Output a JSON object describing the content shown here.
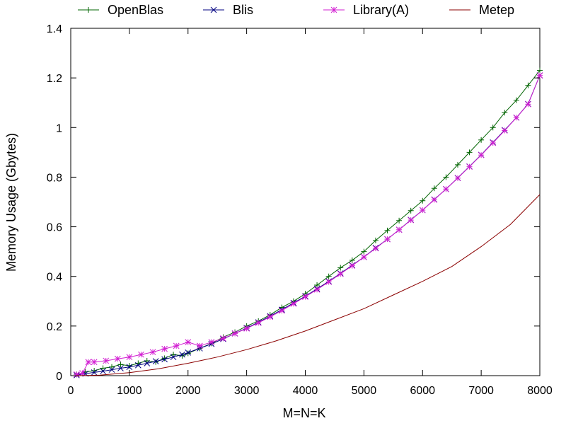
{
  "chart_data": {
    "type": "line",
    "title": "",
    "xlabel": "M=N=K",
    "ylabel": "Memory Usage (Gbytes)",
    "xlim": [
      0,
      8000
    ],
    "ylim": [
      0,
      1.4
    ],
    "xticks": [
      0,
      1000,
      2000,
      3000,
      4000,
      5000,
      6000,
      7000,
      8000
    ],
    "yticks": [
      0,
      0.2,
      0.4,
      0.6,
      0.8,
      1,
      1.2,
      1.4
    ],
    "xtick_labels": [
      "0",
      "1000",
      "2000",
      "3000",
      "4000",
      "5000",
      "6000",
      "7000",
      "8000"
    ],
    "ytick_labels": [
      "0",
      "0.2",
      "0.4",
      "0.6",
      "0.8",
      "1",
      "1.2",
      "1.4"
    ],
    "grid": false,
    "legend_position": "top",
    "series": [
      {
        "name": "OpenBlas",
        "color": "#006400",
        "marker": "plus",
        "x": [
          100,
          250,
          400,
          550,
          700,
          850,
          1000,
          1150,
          1300,
          1450,
          1600,
          1750,
          1900,
          2000,
          2200,
          2400,
          2600,
          2800,
          3000,
          3200,
          3400,
          3600,
          3800,
          4000,
          4200,
          4400,
          4600,
          4800,
          5000,
          5200,
          5400,
          5600,
          5800,
          6000,
          6200,
          6400,
          6600,
          6800,
          7000,
          7200,
          7400,
          7600,
          7800,
          8000
        ],
        "y": [
          0.005,
          0.015,
          0.02,
          0.03,
          0.035,
          0.045,
          0.04,
          0.05,
          0.06,
          0.055,
          0.07,
          0.085,
          0.08,
          0.09,
          0.11,
          0.13,
          0.155,
          0.175,
          0.2,
          0.22,
          0.245,
          0.275,
          0.3,
          0.33,
          0.365,
          0.4,
          0.435,
          0.465,
          0.5,
          0.545,
          0.585,
          0.625,
          0.665,
          0.705,
          0.755,
          0.8,
          0.85,
          0.9,
          0.95,
          1.0,
          1.06,
          1.11,
          1.17,
          1.23
        ]
      },
      {
        "name": "Blis",
        "color": "#000080",
        "marker": "x",
        "x": [
          100,
          250,
          400,
          550,
          700,
          850,
          1000,
          1150,
          1300,
          1450,
          1600,
          1750,
          1900,
          2000,
          2200,
          2400,
          2600,
          2800,
          3000,
          3200,
          3400,
          3600,
          3800,
          4000,
          4200,
          4400,
          4600,
          4800,
          5000,
          5200,
          5400,
          5600,
          5800,
          6000,
          6200,
          6400,
          6600,
          6800,
          7000,
          7200,
          7400,
          7600,
          7800,
          8000
        ],
        "y": [
          0.002,
          0.008,
          0.013,
          0.018,
          0.024,
          0.03,
          0.035,
          0.042,
          0.05,
          0.058,
          0.066,
          0.075,
          0.085,
          0.093,
          0.11,
          0.128,
          0.148,
          0.17,
          0.192,
          0.215,
          0.24,
          0.266,
          0.293,
          0.32,
          0.35,
          0.38,
          0.412,
          0.445,
          0.478,
          0.515,
          0.55,
          0.588,
          0.628,
          0.667,
          0.71,
          0.752,
          0.797,
          0.843,
          0.89,
          0.94,
          0.99,
          1.04,
          1.095,
          1.21
        ]
      },
      {
        "name": "Library(A)",
        "color": "#d21ed2",
        "marker": "asterisk",
        "x": [
          100,
          200,
          300,
          400,
          600,
          800,
          1000,
          1200,
          1400,
          1600,
          1800,
          2000,
          2200,
          2400,
          2600,
          2800,
          3000,
          3200,
          3400,
          3600,
          3800,
          4000,
          4200,
          4400,
          4600,
          4800,
          5000,
          5200,
          5400,
          5600,
          5800,
          6000,
          6200,
          6400,
          6600,
          6800,
          7000,
          7200,
          7400,
          7600,
          7800,
          8000
        ],
        "y": [
          0.005,
          0.01,
          0.055,
          0.055,
          0.06,
          0.068,
          0.075,
          0.085,
          0.095,
          0.108,
          0.12,
          0.135,
          0.12,
          0.135,
          0.15,
          0.17,
          0.19,
          0.213,
          0.237,
          0.262,
          0.29,
          0.318,
          0.347,
          0.378,
          0.41,
          0.443,
          0.478,
          0.513,
          0.55,
          0.588,
          0.627,
          0.667,
          0.709,
          0.752,
          0.796,
          0.842,
          0.889,
          0.938,
          0.988,
          1.04,
          1.094,
          1.21
        ]
      },
      {
        "name": "Metep",
        "color": "#8b0000",
        "marker": "none",
        "x": [
          100,
          500,
          1000,
          1500,
          2000,
          2500,
          3000,
          3500,
          4000,
          4500,
          5000,
          5500,
          6000,
          6500,
          7000,
          7500,
          8000
        ],
        "y": [
          0.0,
          0.002,
          0.012,
          0.028,
          0.05,
          0.075,
          0.105,
          0.14,
          0.18,
          0.225,
          0.27,
          0.325,
          0.38,
          0.44,
          0.52,
          0.61,
          0.73
        ]
      }
    ]
  }
}
